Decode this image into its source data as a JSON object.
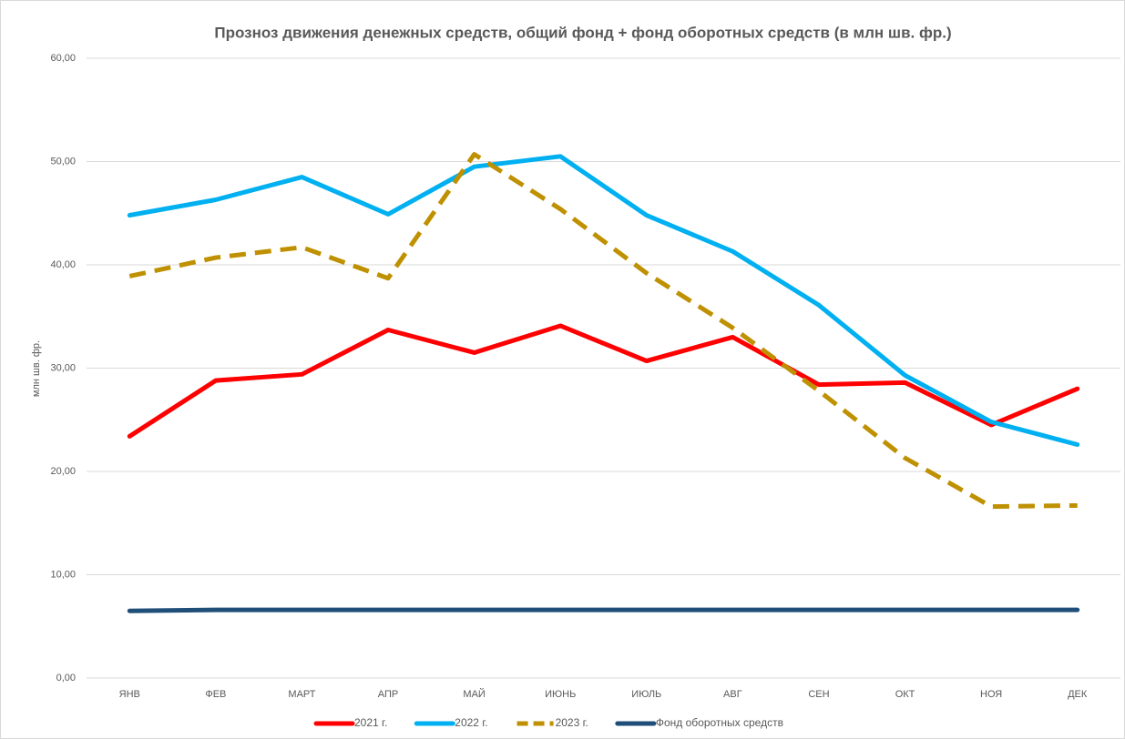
{
  "chart_data": {
    "type": "line",
    "title": "Прозноз движения денежных средств, общий фонд + фонд оборотных средств (в млн шв. фр.)",
    "y_label": "млн шв. фр.",
    "categories": [
      "ЯНВ",
      "ФЕВ",
      "МАРТ",
      "АПР",
      "МАЙ",
      "ИЮНЬ",
      "ИЮЛЬ",
      "АВГ",
      "СЕН",
      "ОКТ",
      "НОЯ",
      "ДЕК"
    ],
    "series": [
      {
        "name": "2021 г.",
        "color": "#ff0000",
        "dashed": false,
        "values": [
          23.4,
          28.8,
          29.4,
          33.7,
          31.5,
          34.1,
          30.7,
          33.0,
          28.4,
          28.6,
          24.5,
          28.0
        ]
      },
      {
        "name": "2022 г.",
        "color": "#00b0f0",
        "dashed": false,
        "values": [
          44.8,
          46.3,
          48.5,
          44.9,
          49.5,
          50.5,
          44.8,
          41.3,
          36.1,
          29.3,
          24.8,
          22.6
        ]
      },
      {
        "name": "2023 г.",
        "color": "#bf9000",
        "dashed": true,
        "values": [
          38.9,
          40.7,
          41.7,
          38.7,
          50.7,
          45.4,
          39.2,
          33.9,
          27.8,
          21.3,
          16.6,
          16.7
        ]
      },
      {
        "name": "Фонд оборотных средств",
        "color": "#1f4e79",
        "dashed": false,
        "values": [
          6.5,
          6.6,
          6.6,
          6.6,
          6.6,
          6.6,
          6.6,
          6.6,
          6.6,
          6.6,
          6.6,
          6.6
        ]
      }
    ],
    "ylim": [
      0,
      60
    ],
    "yticks": [
      {
        "value": 0,
        "label": "0,00"
      },
      {
        "value": 10,
        "label": "10,00"
      },
      {
        "value": 20,
        "label": "20,00"
      },
      {
        "value": 30,
        "label": "30,00"
      },
      {
        "value": 40,
        "label": "40,00"
      },
      {
        "value": 50,
        "label": "50,00"
      },
      {
        "value": 60,
        "label": "60,00"
      }
    ],
    "grid": true,
    "legend": "bottom"
  }
}
